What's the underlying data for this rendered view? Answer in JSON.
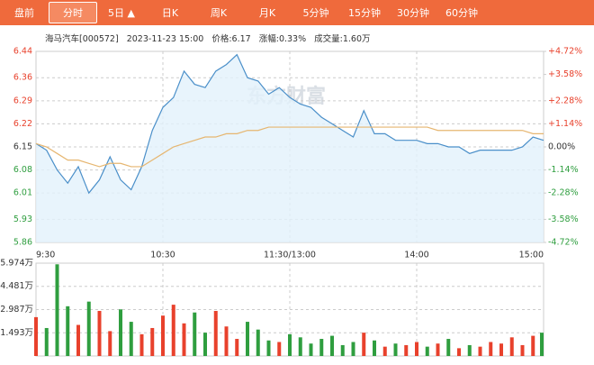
{
  "tabs": [
    "盘前",
    "分时",
    "5日 ▲",
    "日K",
    "周K",
    "月K",
    "5分钟",
    "15分钟",
    "30分钟",
    "60分钟"
  ],
  "info": {
    "name": "海马汽车[000572]",
    "time": "2023-11-23 15:00",
    "price": "价格:6.17",
    "change": "涨幅:0.33%",
    "volume": "成交量:1.60万"
  },
  "watermark": "东方财富",
  "chart_data": [
    {
      "type": "line",
      "xlim": [
        0,
        240
      ],
      "xticks": [
        {
          "value": 0,
          "label": "9:30"
        },
        {
          "value": 60,
          "label": "10:30"
        },
        {
          "value": 120,
          "label": "11:30/13:00"
        },
        {
          "value": 180,
          "label": "14:00"
        },
        {
          "value": 240,
          "label": "15:00"
        }
      ],
      "ylim": [
        5.86,
        6.44
      ],
      "yticks": [
        5.86,
        5.93,
        6.01,
        6.08,
        6.15,
        6.22,
        6.29,
        6.36,
        6.44
      ],
      "y2lim": [
        -4.72,
        4.72
      ],
      "y2ticks": [
        {
          "value": -4.72,
          "label": "-4.72%"
        },
        {
          "value": -3.58,
          "label": "-3.58%"
        },
        {
          "value": -2.28,
          "label": "-2.28%"
        },
        {
          "value": -1.14,
          "label": "-1.14%"
        },
        {
          "value": 0,
          "label": "0.00%"
        },
        {
          "value": 1.14,
          "label": "+1.14%"
        },
        {
          "value": 2.28,
          "label": "+2.28%"
        },
        {
          "value": 3.58,
          "label": "+3.58%"
        },
        {
          "value": 4.72,
          "label": "+4.72%"
        }
      ],
      "grid": true,
      "x": [
        0,
        5,
        10,
        15,
        20,
        25,
        30,
        35,
        40,
        45,
        50,
        55,
        60,
        65,
        70,
        75,
        80,
        85,
        90,
        95,
        100,
        105,
        110,
        115,
        120,
        125,
        130,
        135,
        140,
        145,
        150,
        155,
        160,
        165,
        170,
        175,
        180,
        185,
        190,
        195,
        200,
        205,
        210,
        215,
        220,
        225,
        230,
        235,
        240
      ],
      "series": [
        {
          "color": "#4a8fc9",
          "fill": "#e2f1fb",
          "values": [
            6.16,
            6.14,
            6.08,
            6.04,
            6.09,
            6.01,
            6.05,
            6.12,
            6.05,
            6.02,
            6.09,
            6.2,
            6.27,
            6.3,
            6.38,
            6.34,
            6.33,
            6.38,
            6.4,
            6.43,
            6.36,
            6.35,
            6.31,
            6.33,
            6.3,
            6.28,
            6.27,
            6.24,
            6.22,
            6.2,
            6.18,
            6.26,
            6.19,
            6.19,
            6.17,
            6.17,
            6.17,
            6.16,
            6.16,
            6.15,
            6.15,
            6.13,
            6.14,
            6.14,
            6.14,
            6.14,
            6.15,
            6.18,
            6.17
          ]
        },
        {
          "color": "#e6b670",
          "values": [
            6.16,
            6.15,
            6.13,
            6.11,
            6.11,
            6.1,
            6.09,
            6.1,
            6.1,
            6.09,
            6.09,
            6.11,
            6.13,
            6.15,
            6.16,
            6.17,
            6.18,
            6.18,
            6.19,
            6.19,
            6.2,
            6.2,
            6.21,
            6.21,
            6.21,
            6.21,
            6.21,
            6.21,
            6.21,
            6.21,
            6.21,
            6.21,
            6.21,
            6.21,
            6.21,
            6.21,
            6.21,
            6.21,
            6.2,
            6.2,
            6.2,
            6.2,
            6.2,
            6.2,
            6.2,
            6.2,
            6.2,
            6.19,
            6.19
          ]
        }
      ]
    },
    {
      "type": "bar",
      "xlim": [
        0,
        240
      ],
      "ylim": [
        0,
        5.974
      ],
      "yticks": [
        {
          "value": 1.493,
          "label": "1.493万"
        },
        {
          "value": 2.987,
          "label": "2.987万"
        },
        {
          "value": 4.481,
          "label": "4.481万"
        },
        {
          "value": 5.974,
          "label": "5.974万"
        }
      ],
      "x": [
        0,
        5,
        10,
        15,
        20,
        25,
        30,
        35,
        40,
        45,
        50,
        55,
        60,
        65,
        70,
        75,
        80,
        85,
        90,
        95,
        100,
        105,
        110,
        115,
        120,
        125,
        130,
        135,
        140,
        145,
        150,
        155,
        160,
        165,
        170,
        175,
        180,
        185,
        190,
        195,
        200,
        205,
        210,
        215,
        220,
        225,
        230,
        235,
        240
      ],
      "values": [
        2.5,
        1.8,
        5.9,
        3.2,
        2.0,
        3.5,
        2.9,
        1.6,
        3.0,
        2.2,
        1.4,
        1.8,
        2.6,
        3.3,
        2.1,
        2.8,
        1.5,
        2.9,
        1.9,
        1.1,
        2.2,
        1.7,
        1.0,
        0.9,
        1.4,
        1.2,
        0.8,
        1.1,
        1.3,
        0.7,
        0.9,
        1.5,
        1.0,
        0.6,
        0.8,
        0.7,
        0.9,
        0.6,
        0.8,
        1.1,
        0.5,
        0.7,
        0.6,
        0.9,
        0.8,
        1.2,
        0.7,
        1.3,
        1.5
      ],
      "colors": [
        "#e8412c",
        "#2f9e3f",
        "#2f9e3f",
        "#2f9e3f",
        "#e8412c",
        "#2f9e3f",
        "#e8412c",
        "#e8412c",
        "#2f9e3f",
        "#2f9e3f",
        "#e8412c",
        "#e8412c",
        "#e8412c",
        "#e8412c",
        "#e8412c",
        "#2f9e3f",
        "#2f9e3f",
        "#e8412c",
        "#e8412c",
        "#e8412c",
        "#2f9e3f",
        "#2f9e3f",
        "#2f9e3f",
        "#e8412c",
        "#2f9e3f",
        "#2f9e3f",
        "#2f9e3f",
        "#2f9e3f",
        "#2f9e3f",
        "#2f9e3f",
        "#2f9e3f",
        "#e8412c",
        "#2f9e3f",
        "#e8412c",
        "#2f9e3f",
        "#e8412c",
        "#e8412c",
        "#2f9e3f",
        "#e8412c",
        "#2f9e3f",
        "#e8412c",
        "#2f9e3f",
        "#e8412c",
        "#e8412c",
        "#e8412c",
        "#e8412c",
        "#e8412c",
        "#e8412c",
        "#2f9e3f"
      ]
    }
  ]
}
